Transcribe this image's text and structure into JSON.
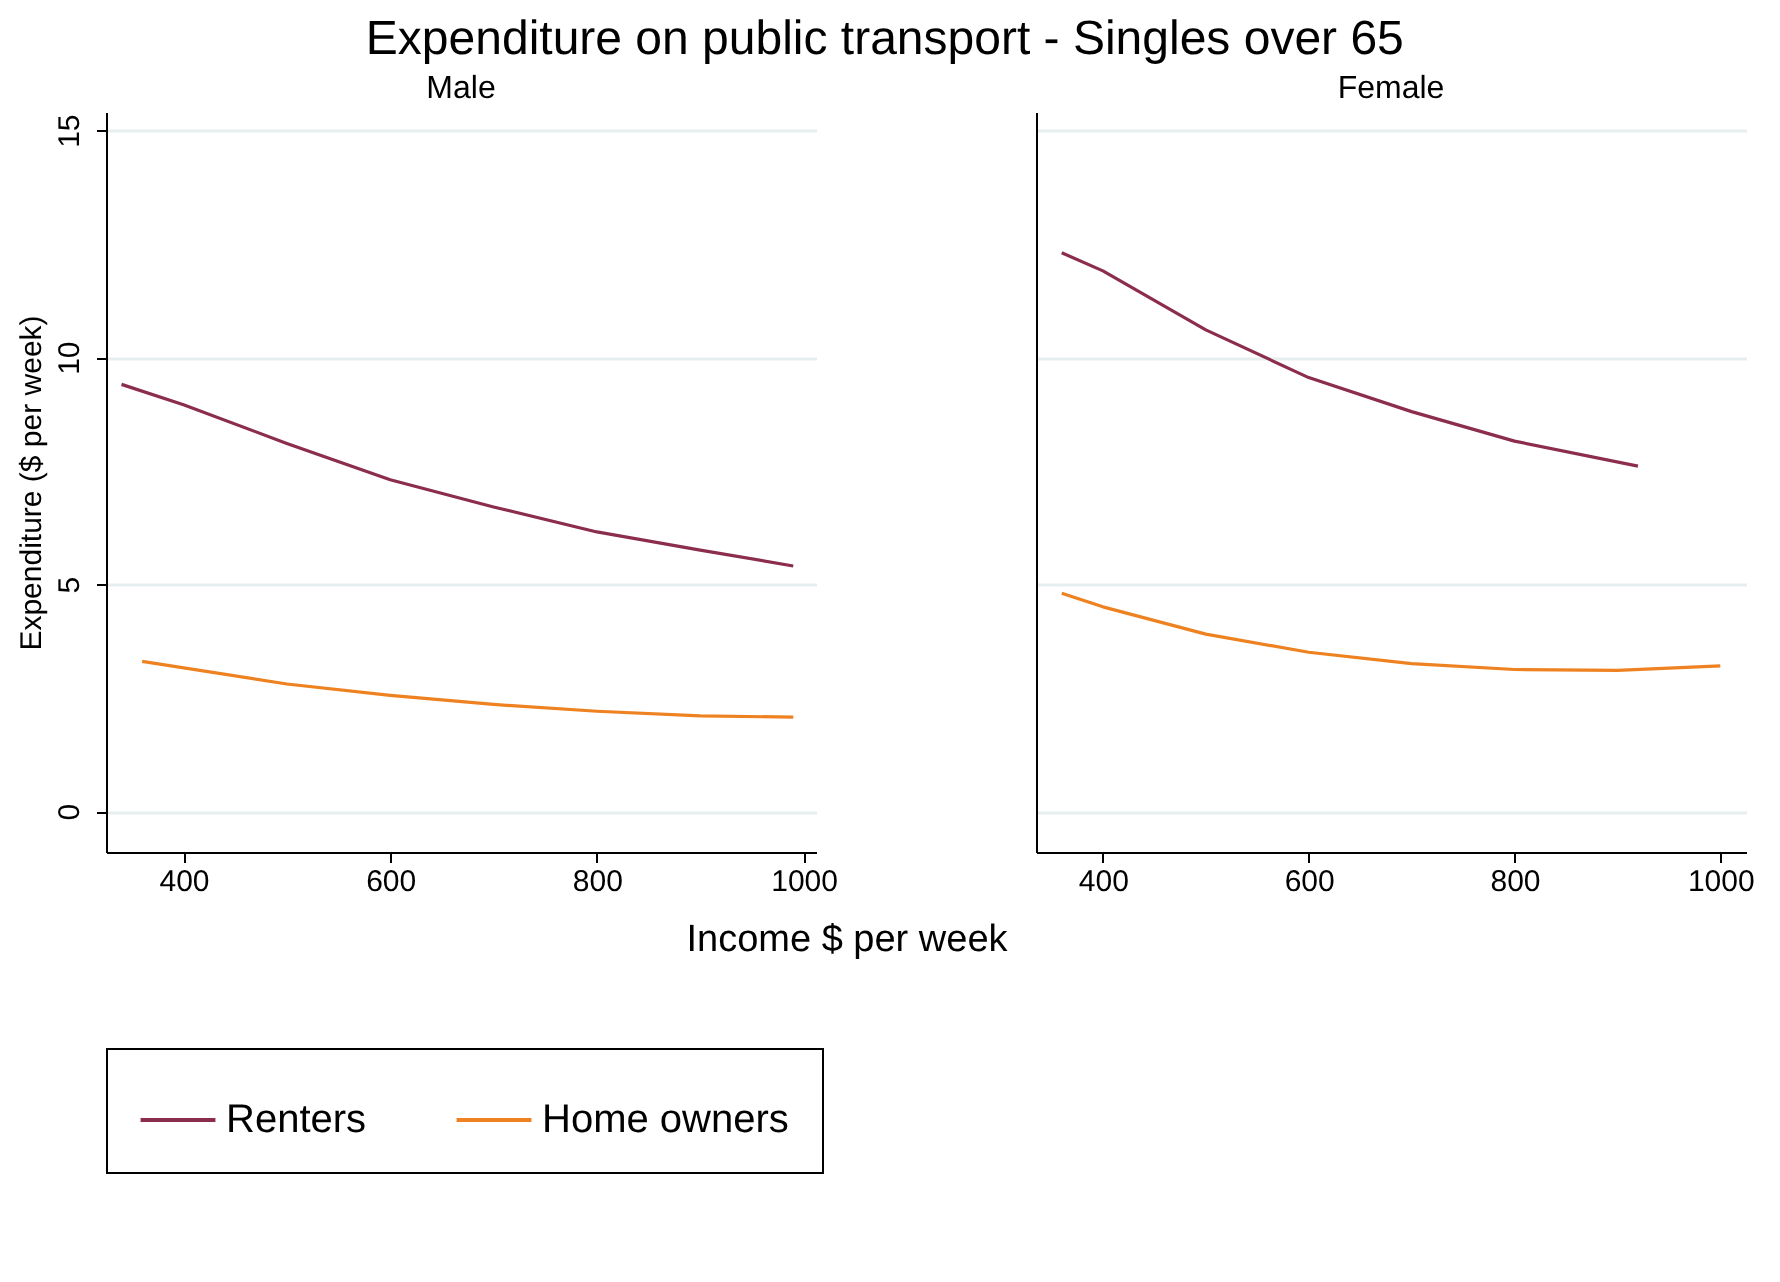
{
  "chart_data": [
    {
      "type": "line",
      "title": "Expenditure on public transport - Singles over 65",
      "subtitle": "Male",
      "xlabel": "Income $ per week",
      "ylabel": "Expenditure ($ per week)",
      "xlim": [
        325,
        1012
      ],
      "xticks": [
        400,
        600,
        800,
        1000
      ],
      "ylim": [
        -0.9,
        15.4
      ],
      "yticks": [
        0,
        5,
        10,
        15
      ],
      "grid": "y",
      "legend": "bottom",
      "series": [
        {
          "name": "Renters",
          "color": "#8b2d4b",
          "x": [
            340,
            400,
            500,
            600,
            700,
            800,
            900,
            990
          ],
          "values": [
            9.4,
            8.95,
            8.1,
            7.3,
            6.7,
            6.15,
            5.75,
            5.4
          ]
        },
        {
          "name": "Home owners",
          "color": "#ee8120",
          "x": [
            360,
            500,
            600,
            700,
            800,
            900,
            990
          ],
          "values": [
            3.3,
            2.8,
            2.55,
            2.35,
            2.2,
            2.1,
            2.07
          ]
        }
      ]
    },
    {
      "type": "line",
      "subtitle": "Female",
      "xlim": [
        335,
        1025
      ],
      "xticks": [
        400,
        600,
        800,
        1000
      ],
      "ylim": [
        -0.9,
        15.4
      ],
      "yticks": [
        0,
        5,
        10,
        15
      ],
      "grid": "y",
      "tick_labels": "x",
      "series": [
        {
          "name": "Renters",
          "color": "#8b2d4b",
          "x": [
            360,
            400,
            500,
            600,
            700,
            800,
            920
          ],
          "values": [
            12.3,
            11.9,
            10.6,
            9.55,
            8.8,
            8.15,
            7.6
          ]
        },
        {
          "name": "Home owners",
          "color": "#ee8120",
          "x": [
            360,
            400,
            500,
            600,
            700,
            800,
            900,
            1000
          ],
          "values": [
            4.8,
            4.5,
            3.9,
            3.5,
            3.25,
            3.12,
            3.1,
            3.2
          ]
        }
      ]
    }
  ]
}
